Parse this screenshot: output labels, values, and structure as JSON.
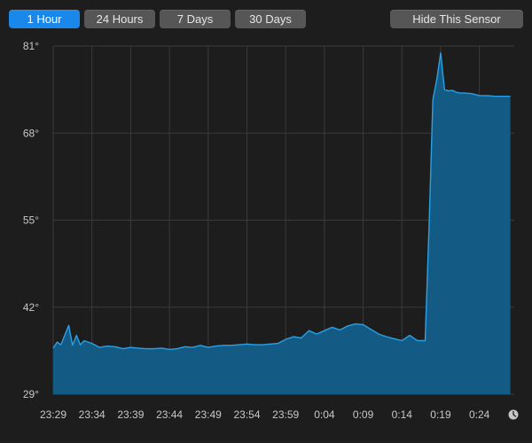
{
  "toolbar": {
    "ranges": [
      {
        "label": "1 Hour",
        "active": true
      },
      {
        "label": "24 Hours",
        "active": false
      },
      {
        "label": "7 Days",
        "active": false
      },
      {
        "label": "30 Days",
        "active": false
      }
    ],
    "hide_label": "Hide This Sensor"
  },
  "colors": {
    "background": "#1d1d1d",
    "grid": "#3a3a3a",
    "area_fill": "#135b84",
    "line": "#2aa0e6",
    "active_button": "#1a88ea",
    "button": "#565656"
  },
  "icons": {
    "end_marker": "clock-icon"
  },
  "chart_data": {
    "type": "area",
    "ylim": [
      29,
      81
    ],
    "yticks": [
      "81°",
      "68°",
      "55°",
      "42°",
      "29°"
    ],
    "ytick_values": [
      81,
      68,
      55,
      42,
      29
    ],
    "xticks": [
      "23:29",
      "23:34",
      "23:39",
      "23:44",
      "23:49",
      "23:54",
      "23:59",
      "0:04",
      "0:09",
      "0:14",
      "0:19",
      "0:24"
    ],
    "grid": true,
    "series": [
      {
        "x": [
          "23:29",
          "23:29:30",
          "23:30",
          "23:31",
          "23:31:30",
          "23:32",
          "23:32:30",
          "23:33",
          "23:34",
          "23:35",
          "23:36",
          "23:37",
          "23:38",
          "23:39",
          "23:40",
          "23:41",
          "23:42",
          "23:43",
          "23:44",
          "23:45",
          "23:46",
          "23:47",
          "23:48",
          "23:49",
          "23:50",
          "23:51",
          "23:52",
          "23:53",
          "23:54",
          "23:55",
          "23:56",
          "23:57",
          "23:58",
          "23:59",
          "0:00",
          "0:01",
          "0:02",
          "0:03",
          "0:04",
          "0:05",
          "0:06",
          "0:07",
          "0:08",
          "0:09",
          "0:10",
          "0:11",
          "0:12",
          "0:13",
          "0:14",
          "0:15",
          "0:16",
          "0:17",
          "0:17:30",
          "0:18",
          "0:18:30",
          "0:19",
          "0:19:30",
          "0:20",
          "0:20:30",
          "0:21",
          "0:21:30",
          "0:22",
          "0:23",
          "0:24",
          "0:25",
          "0:26",
          "0:27",
          "0:28"
        ],
        "values": [
          35.9,
          36.8,
          36.4,
          39.3,
          36.3,
          37.8,
          36.4,
          37.0,
          36.6,
          36.0,
          36.2,
          36.1,
          35.8,
          36.0,
          35.9,
          35.8,
          35.8,
          35.9,
          35.7,
          35.8,
          36.1,
          36.0,
          36.3,
          36.0,
          36.2,
          36.3,
          36.3,
          36.4,
          36.5,
          36.4,
          36.4,
          36.5,
          36.6,
          37.2,
          37.6,
          37.4,
          38.5,
          38.0,
          38.5,
          39.0,
          38.6,
          39.2,
          39.5,
          39.4,
          38.7,
          38.0,
          37.6,
          37.3,
          37.0,
          37.8,
          37.0,
          37.0,
          54.0,
          73.0,
          76.0,
          80.0,
          74.5,
          74.3,
          74.4,
          74.1,
          74.0,
          74.0,
          73.9,
          73.6,
          73.6,
          73.5,
          73.5,
          73.5
        ]
      }
    ]
  }
}
